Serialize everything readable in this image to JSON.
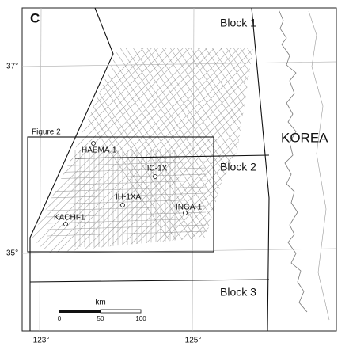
{
  "panel_label": "C",
  "blocks": [
    "Block 1",
    "Block 2",
    "Block 3"
  ],
  "country": "KOREA",
  "figure_box": "Figure 2",
  "wells": [
    "HAEMA-1",
    "IIC-1X",
    "IH-1XA",
    "INGA-1",
    "KACHI-1"
  ],
  "latitude_labels": [
    "37°",
    "35°"
  ],
  "longitude_labels": [
    "123°",
    "125°"
  ],
  "scale_bar": {
    "unit": "km",
    "ticks": [
      0,
      50,
      100
    ]
  }
}
